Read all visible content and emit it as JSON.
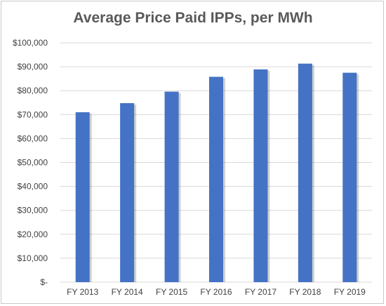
{
  "chart_data": {
    "type": "bar",
    "title": "Average Price Paid IPPs, per MWh",
    "xlabel": "",
    "ylabel": "",
    "categories": [
      "FY 2013",
      "FY 2014",
      "FY 2015",
      "FY 2016",
      "FY 2017",
      "FY 2018",
      "FY 2019"
    ],
    "values": [
      71000,
      74800,
      79600,
      85800,
      88900,
      91300,
      87500
    ],
    "ylim": [
      0,
      100000
    ],
    "ytick_labels": [
      "$-",
      "$10,000",
      "$20,000",
      "$30,000",
      "$40,000",
      "$50,000",
      "$60,000",
      "$70,000",
      "$80,000",
      "$90,000",
      "$100,000"
    ],
    "grid": true,
    "legend": "none",
    "colors": {
      "bar": "#4472c4",
      "grid": "#d9d9d9",
      "text": "#404040",
      "title": "#595959"
    }
  }
}
